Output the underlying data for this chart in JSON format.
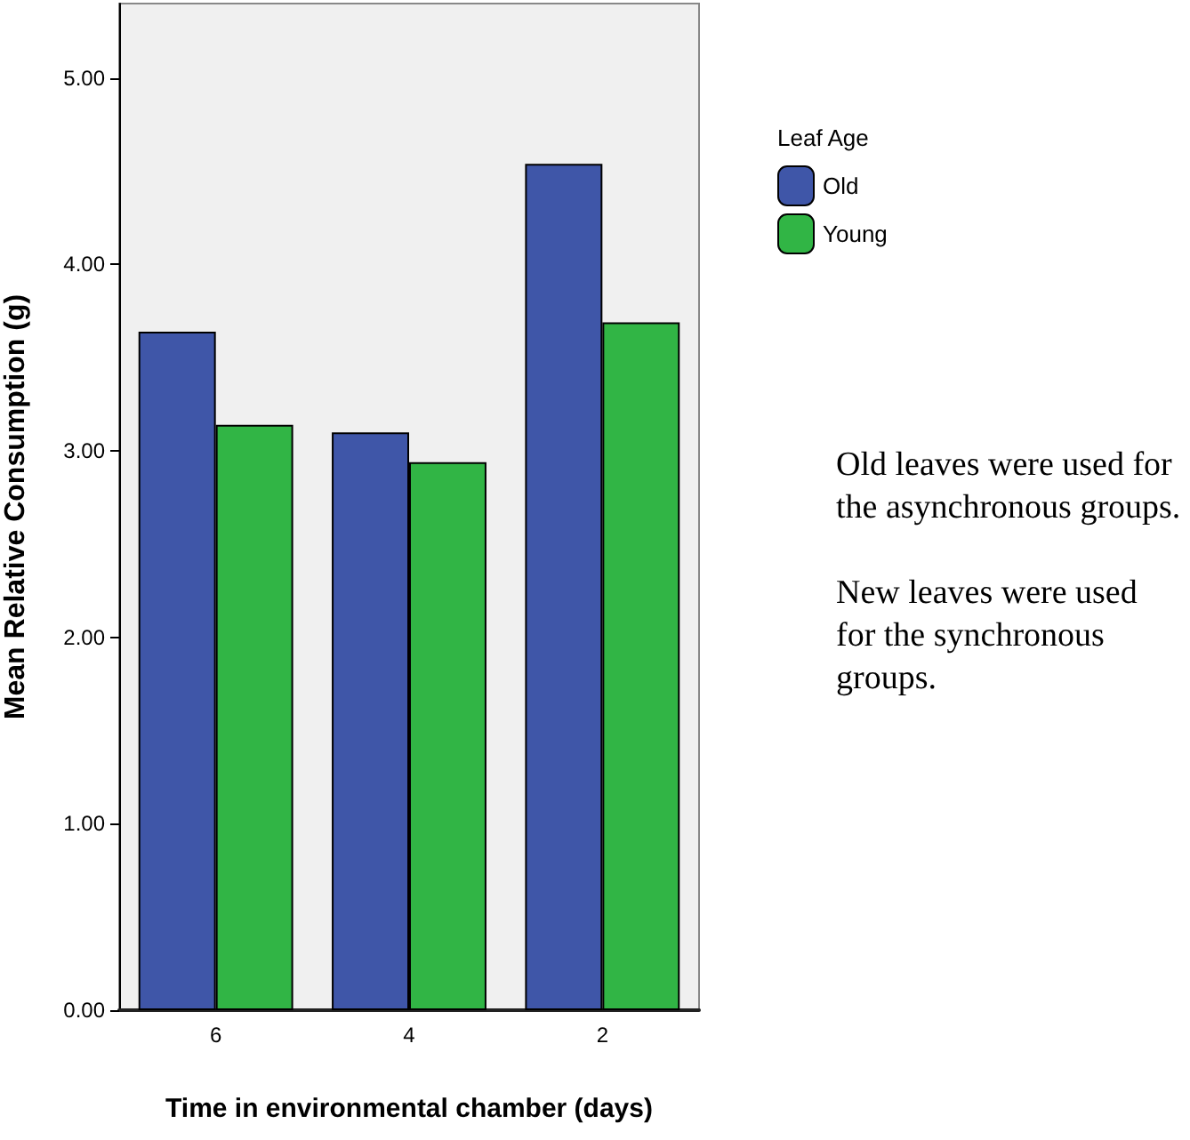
{
  "chart_data": {
    "type": "bar",
    "xlabel": "Time in environmental chamber (days)",
    "ylabel": "Mean Relative Consumption (g)",
    "legend_title": "Leaf Age",
    "categories": [
      "6",
      "4",
      "2"
    ],
    "series": [
      {
        "name": "Old",
        "color": "#3f56a8",
        "values": [
          3.64,
          3.1,
          4.54
        ]
      },
      {
        "name": "Young",
        "color": "#31b545",
        "values": [
          3.14,
          2.94,
          3.69
        ]
      }
    ],
    "ylim": [
      0,
      5.4
    ],
    "yticks": [
      {
        "value": 0,
        "label": "0.00"
      },
      {
        "value": 1,
        "label": "1.00"
      },
      {
        "value": 2,
        "label": "2.00"
      },
      {
        "value": 3,
        "label": "3.00"
      },
      {
        "value": 4,
        "label": "4.00"
      },
      {
        "value": 5,
        "label": "5.00"
      }
    ],
    "grid": false,
    "legend": "top right",
    "annotations": [
      "Old leaves were used for the asynchronous groups.",
      "New leaves were used for the synchronous groups."
    ]
  }
}
